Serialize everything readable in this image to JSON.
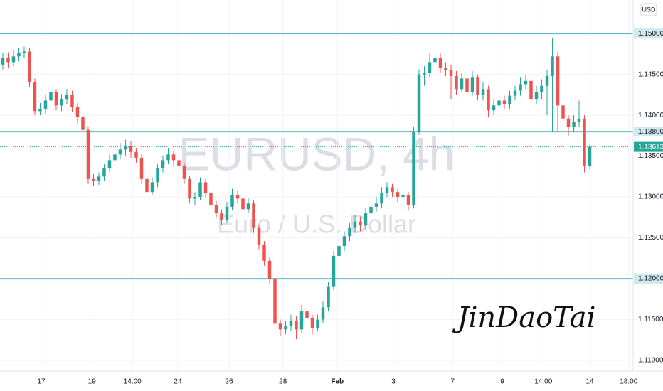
{
  "chart_data": {
    "type": "candlestick",
    "title": "EURUSD, 4h",
    "subtitle": "Euro / U.S. Dollar",
    "currency": "USD",
    "signature": "JinDaoTai",
    "up_color": "#26a69a",
    "down_color": "#ef5350",
    "level_color": "#5fbcc6",
    "grid": true,
    "ylim": [
      1.1087,
      1.1541
    ],
    "xlim": [
      -0.53,
      118.13
    ],
    "yticks": [
      {
        "value": 1.11,
        "label": "1.11000"
      },
      {
        "value": 1.115,
        "label": "1.11500"
      },
      {
        "value": 1.12,
        "label": "1.12000"
      },
      {
        "value": 1.125,
        "label": "1.12500"
      },
      {
        "value": 1.13,
        "label": "1.13000"
      },
      {
        "value": 1.135,
        "label": "1.13500"
      },
      {
        "value": 1.14,
        "label": "1.14000"
      },
      {
        "value": 1.145,
        "label": "1.14500"
      },
      {
        "value": 1.15,
        "label": "1.15000"
      }
    ],
    "xticks": [
      {
        "value": 7.2,
        "label": "17"
      },
      {
        "value": 16.7,
        "label": "19"
      },
      {
        "value": 24.3,
        "label": "14:00"
      },
      {
        "value": 32.8,
        "label": "24"
      },
      {
        "value": 42.4,
        "label": "26"
      },
      {
        "value": 52.5,
        "label": "28"
      },
      {
        "value": 62.7,
        "label": "Feb"
      },
      {
        "value": 73.2,
        "label": "3"
      },
      {
        "value": 84.3,
        "label": "7"
      },
      {
        "value": 93.6,
        "label": "9"
      },
      {
        "value": 101.3,
        "label": "14:00"
      },
      {
        "value": 110.0,
        "label": "14"
      },
      {
        "value": 117.3,
        "label": "18:00"
      }
    ],
    "levels": [
      {
        "value": 1.15,
        "label": "1.15000"
      },
      {
        "value": 1.138,
        "label": "1.13800"
      },
      {
        "value": 1.12,
        "label": "1.12000"
      }
    ],
    "last_price": {
      "value": 1.13613,
      "label": "1.13613"
    },
    "open": [
      1.1462,
      1.147,
      1.1465,
      1.1472,
      1.1476,
      1.1478,
      1.144,
      1.1405,
      1.1408,
      1.1418,
      1.1428,
      1.1412,
      1.142,
      1.1425,
      1.141,
      1.1398,
      1.1382,
      1.1322,
      1.132,
      1.1325,
      1.1335,
      1.1345,
      1.1352,
      1.1358,
      1.1362,
      1.1355,
      1.1348,
      1.1322,
      1.1306,
      1.1318,
      1.1335,
      1.1345,
      1.1352,
      1.1345,
      1.1338,
      1.1322,
      1.1298,
      1.13,
      1.1318,
      1.1305,
      1.129,
      1.128,
      1.1272,
      1.1288,
      1.1302,
      1.1298,
      1.1285,
      1.1292,
      1.1262,
      1.1242,
      1.1222,
      1.12,
      1.1145,
      1.1138,
      1.1142,
      1.1148,
      1.1138,
      1.116,
      1.1152,
      1.114,
      1.115,
      1.1165,
      1.119,
      1.1228,
      1.124,
      1.1252,
      1.1262,
      1.127,
      1.1265,
      1.128,
      1.1288,
      1.1292,
      1.1305,
      1.1312,
      1.1306,
      1.13,
      1.1302,
      1.129,
      1.138,
      1.145,
      1.1452,
      1.1465,
      1.147,
      1.1458,
      1.1455,
      1.1448,
      1.1432,
      1.1445,
      1.1428,
      1.1446,
      1.1425,
      1.1432,
      1.1406,
      1.1412,
      1.1418,
      1.1414,
      1.1424,
      1.143,
      1.1438,
      1.1442,
      1.142,
      1.1428,
      1.1436,
      1.1448,
      1.1472,
      1.1412,
      1.1396,
      1.1386,
      1.1392,
      1.1396,
      1.1338
    ],
    "high": [
      1.1476,
      1.1477,
      1.148,
      1.1482,
      1.1484,
      1.1482,
      1.1445,
      1.1415,
      1.1425,
      1.1436,
      1.1432,
      1.1426,
      1.1432,
      1.143,
      1.1415,
      1.1402,
      1.1386,
      1.1328,
      1.133,
      1.134,
      1.1352,
      1.136,
      1.1366,
      1.137,
      1.1368,
      1.136,
      1.1352,
      1.1326,
      1.1324,
      1.134,
      1.135,
      1.136,
      1.1356,
      1.135,
      1.1342,
      1.1326,
      1.1306,
      1.1324,
      1.1322,
      1.131,
      1.1295,
      1.1285,
      1.1294,
      1.131,
      1.1308,
      1.1302,
      1.1298,
      1.1296,
      1.1266,
      1.1246,
      1.1226,
      1.1204,
      1.115,
      1.1148,
      1.1156,
      1.1154,
      1.1168,
      1.1166,
      1.1156,
      1.1156,
      1.1172,
      1.1196,
      1.1234,
      1.1246,
      1.1258,
      1.1268,
      1.1278,
      1.1276,
      1.1286,
      1.1294,
      1.13,
      1.1312,
      1.1318,
      1.1316,
      1.131,
      1.1308,
      1.1306,
      1.1386,
      1.1456,
      1.146,
      1.1476,
      1.1482,
      1.1476,
      1.1465,
      1.1462,
      1.1454,
      1.1452,
      1.145,
      1.1454,
      1.145,
      1.144,
      1.1436,
      1.142,
      1.1424,
      1.1424,
      1.143,
      1.1436,
      1.1446,
      1.145,
      1.1448,
      1.1436,
      1.1444,
      1.1456,
      1.1495,
      1.1478,
      1.1418,
      1.14,
      1.14,
      1.1418,
      1.14,
      1.1364
    ],
    "low": [
      1.1456,
      1.1458,
      1.146,
      1.1466,
      1.147,
      1.1434,
      1.14,
      1.14,
      1.1402,
      1.1412,
      1.1406,
      1.1405,
      1.1414,
      1.1404,
      1.139,
      1.1375,
      1.1316,
      1.1314,
      1.1315,
      1.132,
      1.133,
      1.134,
      1.1346,
      1.135,
      1.1348,
      1.1342,
      1.1316,
      1.13,
      1.1302,
      1.1312,
      1.133,
      1.134,
      1.1338,
      1.1332,
      1.1316,
      1.1292,
      1.129,
      1.1296,
      1.13,
      1.1284,
      1.1274,
      1.1266,
      1.1268,
      1.1284,
      1.1292,
      1.128,
      1.128,
      1.1256,
      1.1236,
      1.1216,
      1.1194,
      1.1134,
      1.113,
      1.1132,
      1.1136,
      1.1126,
      1.1134,
      1.1146,
      1.1132,
      1.1136,
      1.1146,
      1.116,
      1.1186,
      1.1222,
      1.1234,
      1.1246,
      1.1256,
      1.1258,
      1.126,
      1.1274,
      1.1282,
      1.1286,
      1.13,
      1.13,
      1.1294,
      1.1294,
      1.1284,
      1.1286,
      1.1376,
      1.1436,
      1.1446,
      1.146,
      1.1452,
      1.1448,
      1.142,
      1.1425,
      1.1428,
      1.142,
      1.1424,
      1.1418,
      1.1418,
      1.1398,
      1.14,
      1.1406,
      1.1408,
      1.1408,
      1.1418,
      1.1424,
      1.1432,
      1.1414,
      1.1414,
      1.142,
      1.14,
      1.138,
      1.138,
      1.1385,
      1.1375,
      1.138,
      1.1386,
      1.133,
      1.1334
    ],
    "close": [
      1.147,
      1.1465,
      1.1472,
      1.1476,
      1.1478,
      1.144,
      1.1405,
      1.1408,
      1.1418,
      1.1428,
      1.1412,
      1.142,
      1.1425,
      1.141,
      1.1398,
      1.1382,
      1.1322,
      1.132,
      1.1325,
      1.1335,
      1.1345,
      1.1352,
      1.1358,
      1.1362,
      1.1355,
      1.1348,
      1.1322,
      1.1306,
      1.1318,
      1.1335,
      1.1345,
      1.1352,
      1.1345,
      1.1338,
      1.1322,
      1.1298,
      1.13,
      1.1318,
      1.1305,
      1.129,
      1.128,
      1.1272,
      1.1288,
      1.1302,
      1.1298,
      1.1285,
      1.1292,
      1.1262,
      1.1242,
      1.1222,
      1.12,
      1.1145,
      1.1138,
      1.1142,
      1.1148,
      1.1138,
      1.116,
      1.1152,
      1.114,
      1.115,
      1.1165,
      1.119,
      1.1228,
      1.124,
      1.1252,
      1.1262,
      1.127,
      1.1265,
      1.128,
      1.1288,
      1.1292,
      1.1305,
      1.1312,
      1.1306,
      1.13,
      1.1302,
      1.129,
      1.138,
      1.145,
      1.1452,
      1.1465,
      1.147,
      1.1458,
      1.1455,
      1.1448,
      1.1432,
      1.1445,
      1.1428,
      1.1446,
      1.1425,
      1.1432,
      1.1406,
      1.1412,
      1.1418,
      1.1414,
      1.1424,
      1.143,
      1.1438,
      1.1442,
      1.142,
      1.1428,
      1.1436,
      1.1448,
      1.1472,
      1.1412,
      1.1396,
      1.1386,
      1.1392,
      1.1396,
      1.1338,
      1.13613
    ]
  }
}
